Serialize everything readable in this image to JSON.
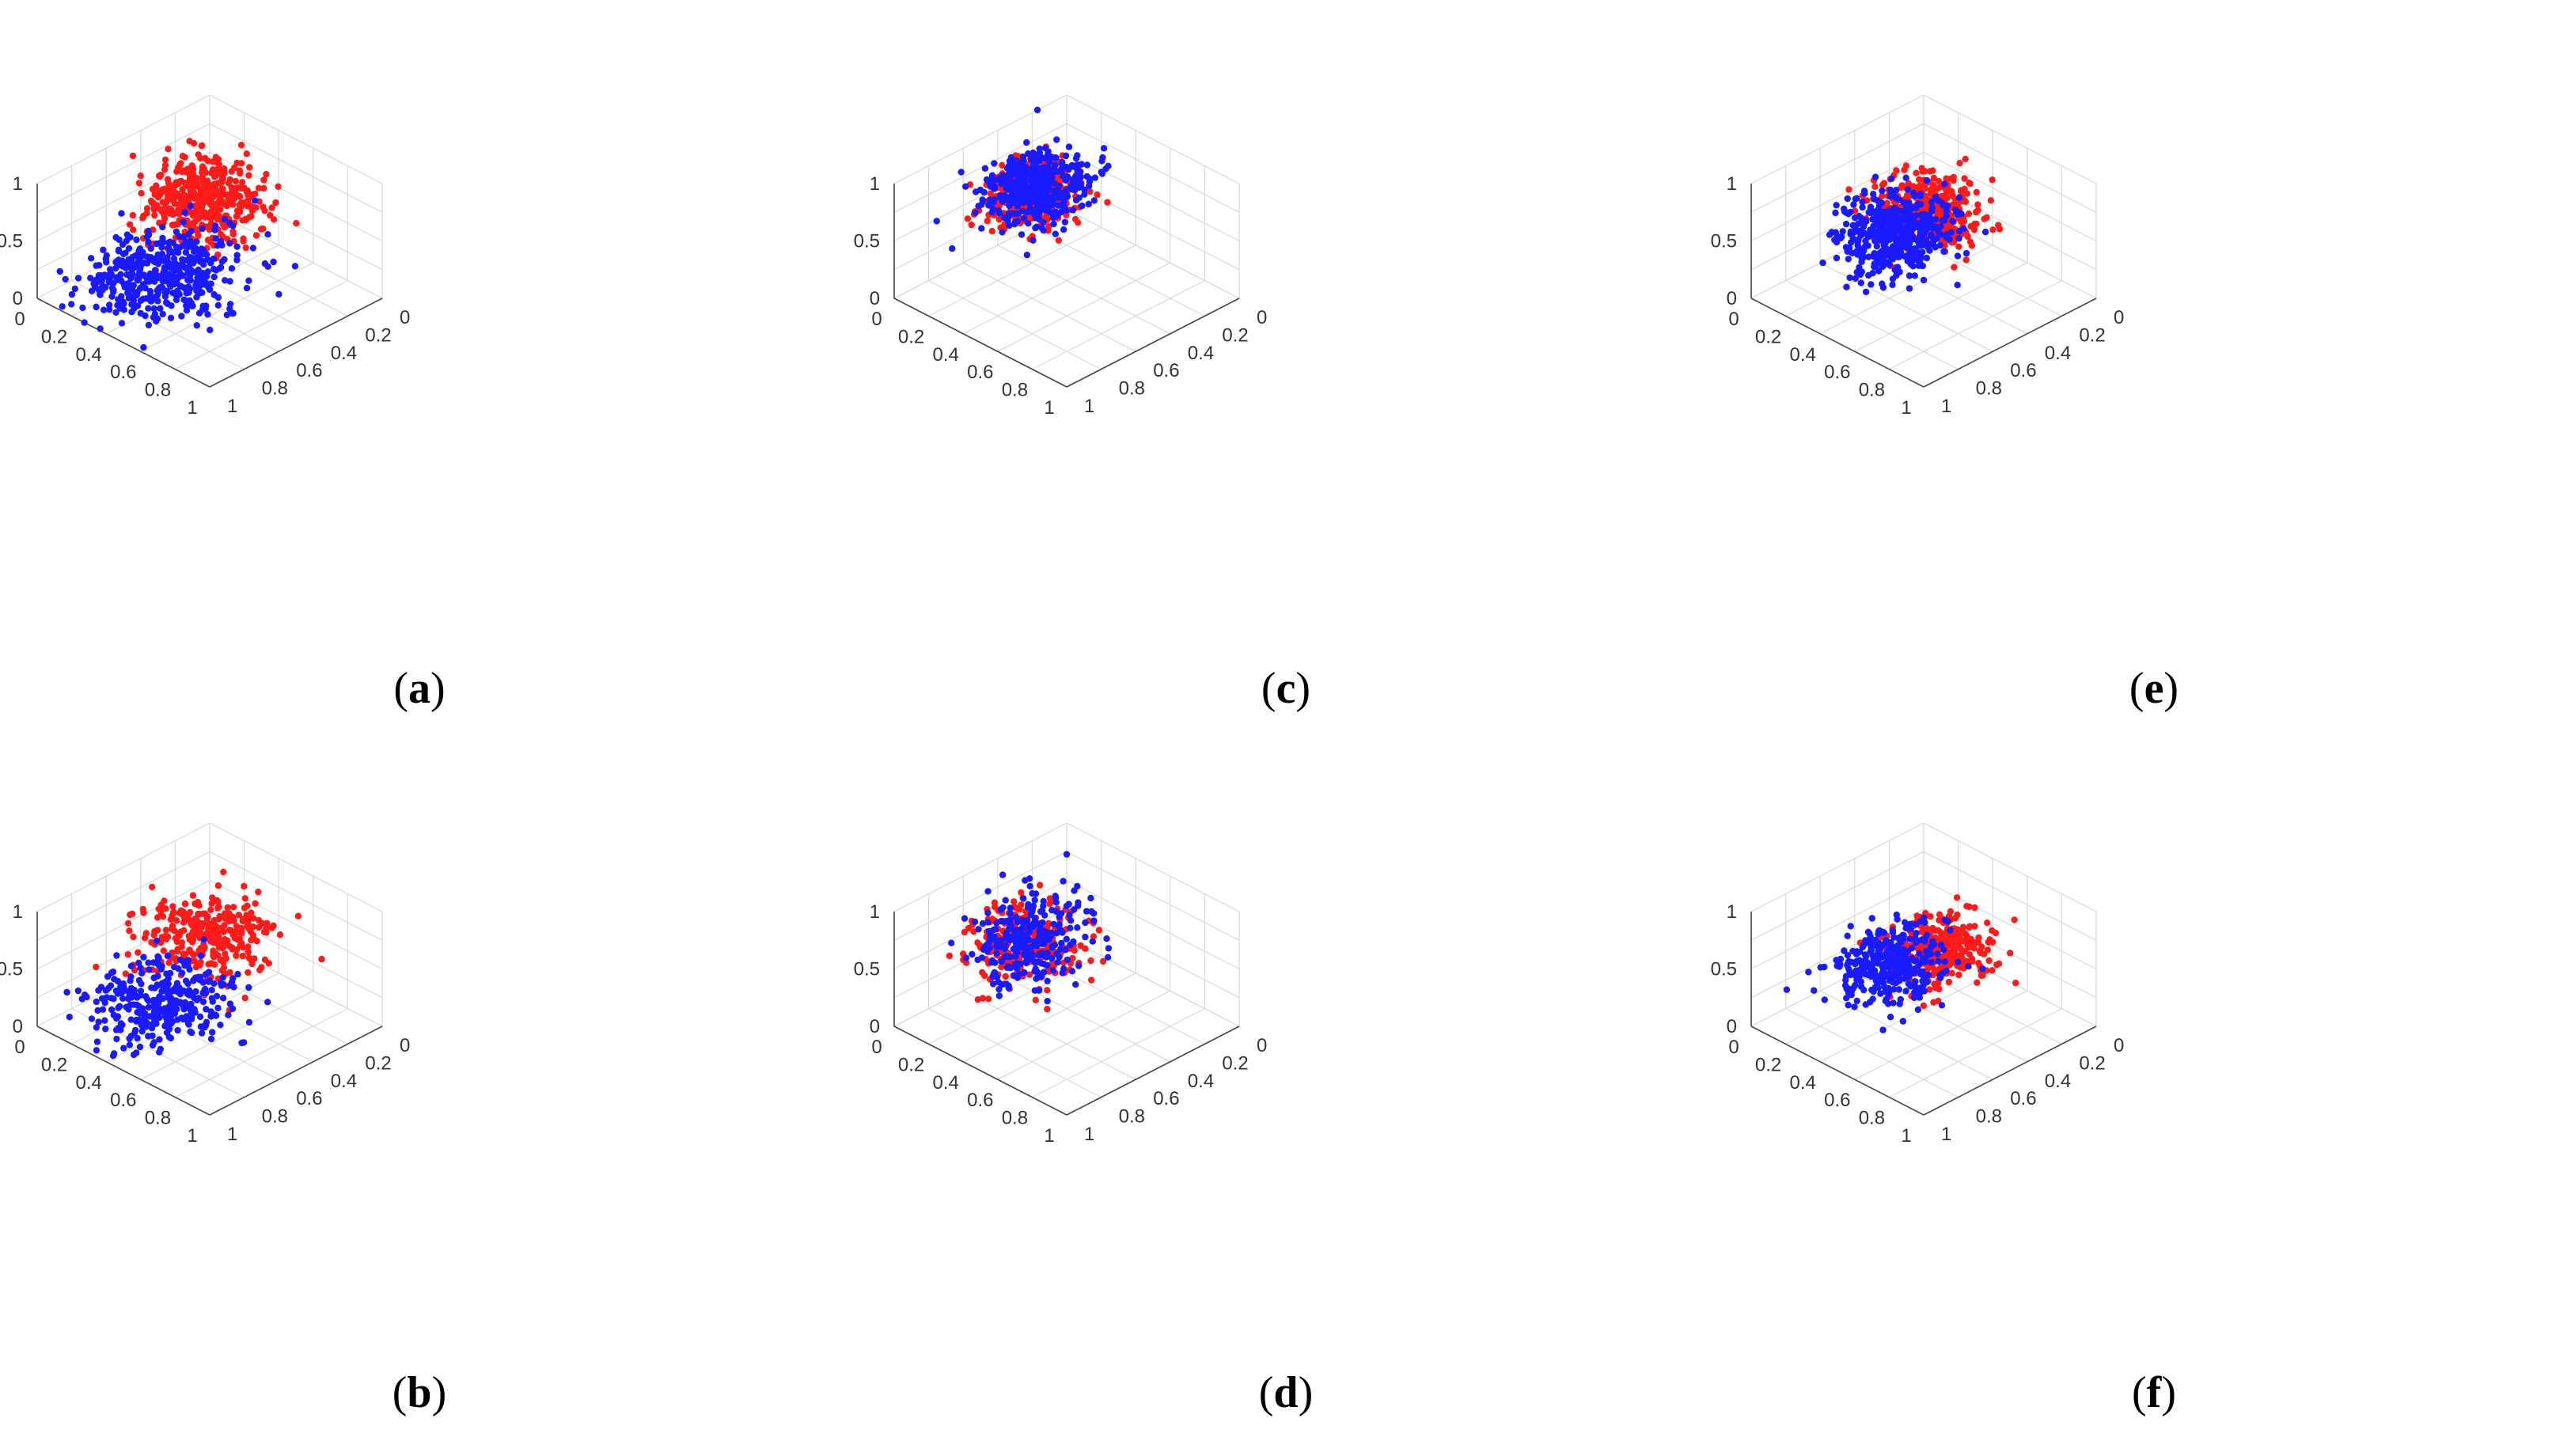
{
  "colors": {
    "series_a": "#ff1a1a",
    "series_b": "#1a1aff",
    "grid": "#d8d8d8",
    "axis": "#444444"
  },
  "chart_data": [
    {
      "type": "scatter",
      "label": "a",
      "xticks": [
        "0",
        "0.2",
        "0.4",
        "0.6",
        "0.8",
        "1"
      ],
      "yticks": [
        "0",
        "0.2",
        "0.4",
        "0.6",
        "0.8",
        "1"
      ],
      "zticks": [
        "0",
        "0.5",
        "1"
      ],
      "xlim": [
        0,
        1
      ],
      "ylim": [
        0,
        1
      ],
      "zlim": [
        0,
        1
      ],
      "grid": true,
      "series": [
        {
          "name": "red",
          "color": "#ff1a1a",
          "n": 440,
          "center": [
            0.22,
            0.18,
            0.4
          ],
          "spread": [
            0.13,
            0.12,
            0.13
          ]
        },
        {
          "name": "blue",
          "color": "#1a1aff",
          "n": 470,
          "center": [
            0.58,
            0.3,
            0.12
          ],
          "spread": [
            0.17,
            0.15,
            0.09
          ]
        }
      ]
    },
    {
      "type": "scatter",
      "label": "b",
      "xticks": [
        "0",
        "0.2",
        "0.4",
        "0.6",
        "0.8",
        "1"
      ],
      "yticks": [
        "0",
        "0.2",
        "0.4",
        "0.6",
        "0.8",
        "1"
      ],
      "zticks": [
        "0",
        "0.5",
        "1"
      ],
      "xlim": [
        0,
        1
      ],
      "ylim": [
        0,
        1
      ],
      "zlim": [
        0,
        1
      ],
      "grid": true,
      "series": [
        {
          "name": "red",
          "color": "#ff1a1a",
          "n": 300,
          "center": [
            0.25,
            0.22,
            0.38
          ],
          "spread": [
            0.15,
            0.14,
            0.12
          ]
        },
        {
          "name": "blue",
          "color": "#1a1aff",
          "n": 330,
          "center": [
            0.58,
            0.32,
            0.12
          ],
          "spread": [
            0.17,
            0.15,
            0.08
          ]
        }
      ]
    },
    {
      "type": "scatter",
      "label": "c",
      "xticks": [
        "0",
        "0.2",
        "0.4",
        "0.6",
        "0.8",
        "1"
      ],
      "yticks": [
        "0",
        "0.2",
        "0.4",
        "0.6",
        "0.8",
        "1"
      ],
      "zticks": [
        "0",
        "0.5",
        "1"
      ],
      "xlim": [
        0,
        1
      ],
      "ylim": [
        0,
        1
      ],
      "zlim": [
        0,
        1
      ],
      "grid": true,
      "series": [
        {
          "name": "red",
          "color": "#ff1a1a",
          "n": 380,
          "center": [
            0.35,
            0.15,
            0.55
          ],
          "spread": [
            0.1,
            0.09,
            0.1
          ]
        },
        {
          "name": "blue",
          "color": "#1a1aff",
          "n": 420,
          "center": [
            0.33,
            0.14,
            0.56
          ],
          "spread": [
            0.12,
            0.1,
            0.13
          ]
        }
      ]
    },
    {
      "type": "scatter",
      "label": "d",
      "xticks": [
        "0",
        "0.2",
        "0.4",
        "0.6",
        "0.8",
        "1"
      ],
      "yticks": [
        "0",
        "0.2",
        "0.4",
        "0.6",
        "0.8",
        "1"
      ],
      "zticks": [
        "0",
        "0.5",
        "1"
      ],
      "xlim": [
        0,
        1
      ],
      "ylim": [
        0,
        1
      ],
      "zlim": [
        0,
        1
      ],
      "grid": true,
      "series": [
        {
          "name": "red",
          "color": "#ff1a1a",
          "n": 260,
          "center": [
            0.42,
            0.18,
            0.42
          ],
          "spread": [
            0.13,
            0.11,
            0.13
          ]
        },
        {
          "name": "blue",
          "color": "#1a1aff",
          "n": 280,
          "center": [
            0.4,
            0.17,
            0.45
          ],
          "spread": [
            0.14,
            0.12,
            0.16
          ]
        }
      ]
    },
    {
      "type": "scatter",
      "label": "e",
      "xticks": [
        "0",
        "0.2",
        "0.4",
        "0.6",
        "0.8",
        "1"
      ],
      "yticks": [
        "0",
        "0.2",
        "0.4",
        "0.6",
        "0.8",
        "1"
      ],
      "zticks": [
        "0",
        "0.5",
        "1"
      ],
      "xlim": [
        0,
        1
      ],
      "ylim": [
        0,
        1
      ],
      "zlim": [
        0,
        1
      ],
      "grid": true,
      "series": [
        {
          "name": "red",
          "color": "#ff1a1a",
          "n": 420,
          "center": [
            0.3,
            0.32,
            0.45
          ],
          "spread": [
            0.1,
            0.11,
            0.11
          ]
        },
        {
          "name": "blue",
          "color": "#1a1aff",
          "n": 460,
          "center": [
            0.4,
            0.25,
            0.3
          ],
          "spread": [
            0.13,
            0.11,
            0.13
          ]
        }
      ]
    },
    {
      "type": "scatter",
      "label": "f",
      "xticks": [
        "0",
        "0.2",
        "0.4",
        "0.6",
        "0.8",
        "1"
      ],
      "yticks": [
        "0",
        "0.2",
        "0.4",
        "0.6",
        "0.8",
        "1"
      ],
      "zticks": [
        "0",
        "0.5",
        "1"
      ],
      "xlim": [
        0,
        1
      ],
      "ylim": [
        0,
        1
      ],
      "zlim": [
        0,
        1
      ],
      "grid": true,
      "series": [
        {
          "name": "red",
          "color": "#ff1a1a",
          "n": 330,
          "center": [
            0.28,
            0.38,
            0.42
          ],
          "spread": [
            0.11,
            0.11,
            0.1
          ]
        },
        {
          "name": "blue",
          "color": "#1a1aff",
          "n": 330,
          "center": [
            0.42,
            0.22,
            0.25
          ],
          "spread": [
            0.13,
            0.11,
            0.11
          ]
        }
      ]
    }
  ]
}
